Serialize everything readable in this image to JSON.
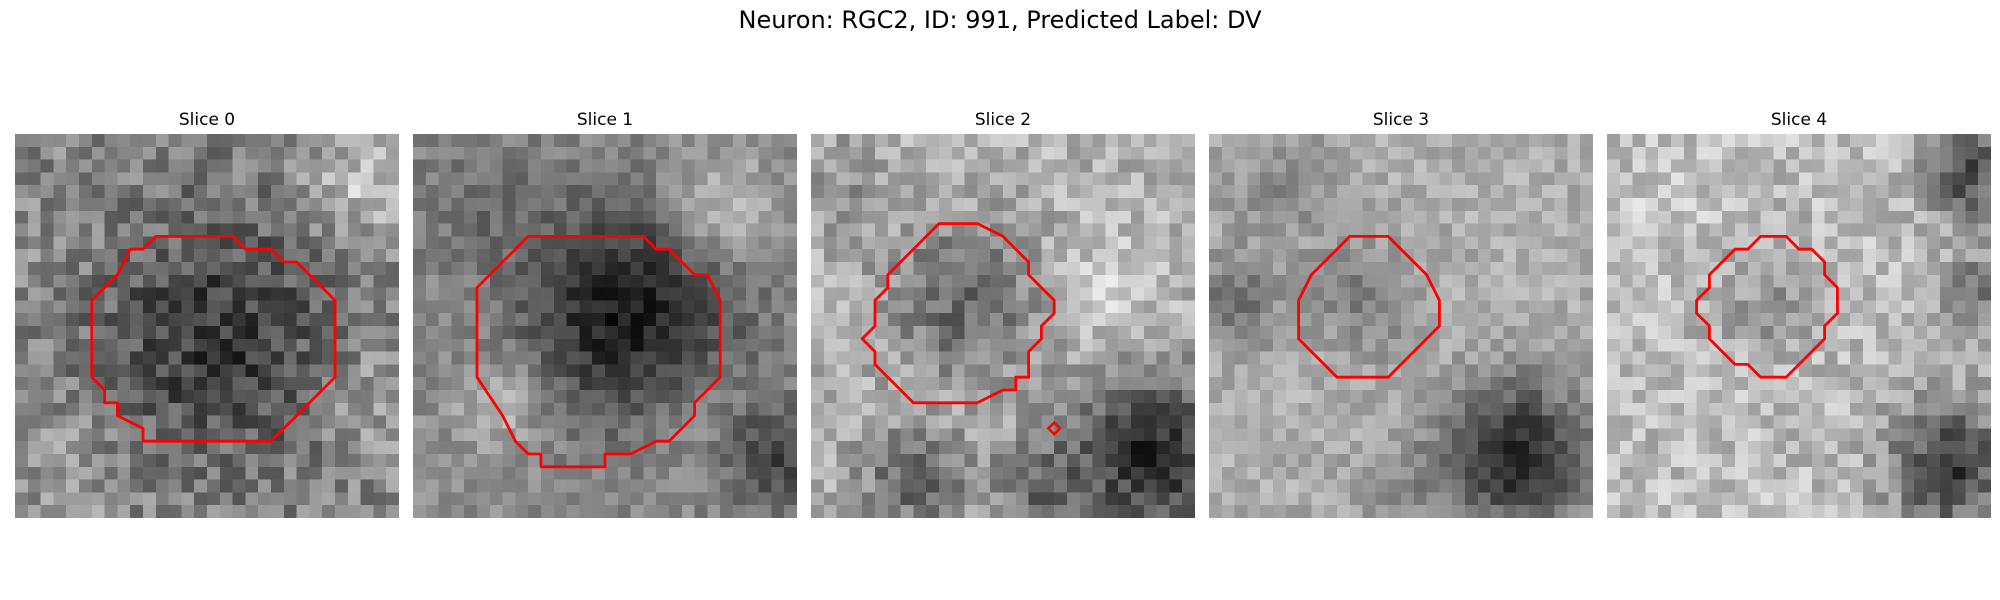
{
  "figure": {
    "title": "Neuron: RGC2, ID: 991, Predicted Label: DV"
  },
  "slices": [
    {
      "title": "Slice 0",
      "contour": [
        [
          11,
          8
        ],
        [
          17,
          8
        ],
        [
          18,
          9
        ],
        [
          20,
          9
        ],
        [
          21,
          10
        ],
        [
          22,
          10
        ],
        [
          25,
          13
        ],
        [
          25,
          19
        ],
        [
          22,
          22
        ],
        [
          21,
          23
        ],
        [
          20,
          24
        ],
        [
          10,
          24
        ],
        [
          10,
          23
        ],
        [
          8,
          22
        ],
        [
          8,
          21
        ],
        [
          7,
          21
        ],
        [
          7,
          20
        ],
        [
          6,
          19
        ],
        [
          6,
          13
        ],
        [
          8,
          11
        ],
        [
          9,
          9
        ],
        [
          10,
          9
        ]
      ]
    },
    {
      "title": "Slice 1",
      "contour": [
        [
          11,
          8
        ],
        [
          18,
          8
        ],
        [
          19,
          9
        ],
        [
          20,
          9
        ],
        [
          22,
          11
        ],
        [
          23,
          11
        ],
        [
          24,
          13
        ],
        [
          24,
          19
        ],
        [
          22,
          21
        ],
        [
          22,
          22
        ],
        [
          20,
          24
        ],
        [
          19,
          24
        ],
        [
          17,
          25
        ],
        [
          15,
          25
        ],
        [
          15,
          26
        ],
        [
          10,
          26
        ],
        [
          10,
          25
        ],
        [
          9,
          25
        ],
        [
          8,
          24
        ],
        [
          7,
          22
        ],
        [
          5,
          19
        ],
        [
          5,
          12
        ],
        [
          7,
          10
        ],
        [
          8,
          9
        ],
        [
          9,
          8
        ]
      ]
    },
    {
      "title": "Slice 2",
      "contour": [
        [
          10,
          7
        ],
        [
          13,
          7
        ],
        [
          15,
          8
        ],
        [
          16,
          9
        ],
        [
          17,
          10
        ],
        [
          17,
          11
        ],
        [
          19,
          13
        ],
        [
          19,
          14
        ],
        [
          18,
          15
        ],
        [
          18,
          16
        ],
        [
          17,
          17
        ],
        [
          17,
          19
        ],
        [
          16,
          19
        ],
        [
          16,
          20
        ],
        [
          15,
          20
        ],
        [
          13,
          21
        ],
        [
          11,
          21
        ],
        [
          8,
          21
        ],
        [
          6,
          19
        ],
        [
          5,
          18
        ],
        [
          5,
          17
        ],
        [
          4,
          16
        ],
        [
          5,
          15
        ],
        [
          5,
          13
        ],
        [
          6,
          12
        ],
        [
          6,
          11
        ],
        [
          7,
          10
        ],
        [
          8,
          9
        ],
        [
          9,
          8
        ]
      ],
      "dot": [
        19,
        23
      ]
    },
    {
      "title": "Slice 3",
      "contour": [
        [
          11,
          8
        ],
        [
          14,
          8
        ],
        [
          15,
          9
        ],
        [
          16,
          10
        ],
        [
          17,
          11
        ],
        [
          18,
          13
        ],
        [
          18,
          15
        ],
        [
          17,
          16
        ],
        [
          16,
          17
        ],
        [
          15,
          18
        ],
        [
          14,
          19
        ],
        [
          10,
          19
        ],
        [
          9,
          18
        ],
        [
          8,
          17
        ],
        [
          7,
          16
        ],
        [
          7,
          15
        ],
        [
          7,
          13
        ],
        [
          8,
          11
        ],
        [
          9,
          10
        ],
        [
          10,
          9
        ]
      ]
    },
    {
      "title": "Slice 4",
      "contour": [
        [
          12,
          8
        ],
        [
          14,
          8
        ],
        [
          15,
          9
        ],
        [
          16,
          9
        ],
        [
          17,
          10
        ],
        [
          17,
          11
        ],
        [
          18,
          12
        ],
        [
          18,
          13
        ],
        [
          18,
          14
        ],
        [
          17,
          15
        ],
        [
          17,
          16
        ],
        [
          16,
          17
        ],
        [
          15,
          18
        ],
        [
          14,
          19
        ],
        [
          12,
          19
        ],
        [
          11,
          18
        ],
        [
          10,
          18
        ],
        [
          9,
          17
        ],
        [
          8,
          16
        ],
        [
          8,
          15
        ],
        [
          7,
          14
        ],
        [
          7,
          13
        ],
        [
          8,
          12
        ],
        [
          8,
          11
        ],
        [
          9,
          10
        ],
        [
          10,
          9
        ],
        [
          11,
          9
        ]
      ]
    }
  ],
  "colors": {
    "contour": "#ff0000",
    "background": "#ffffff"
  }
}
